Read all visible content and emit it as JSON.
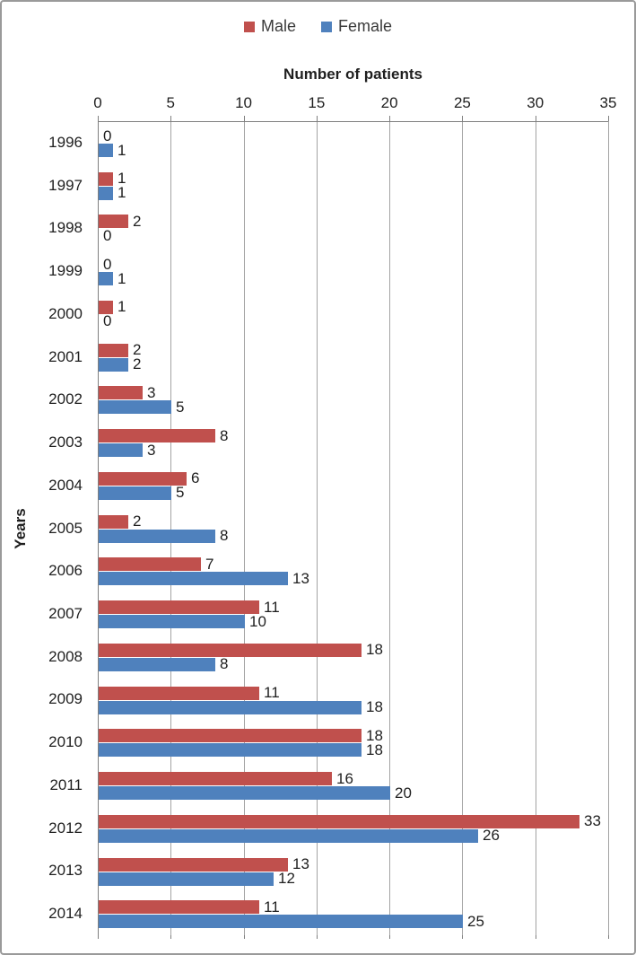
{
  "chart_data": {
    "type": "bar",
    "orientation": "horizontal",
    "xlabel": "Number of patients",
    "ylabel": "Years",
    "categories": [
      "1996",
      "1997",
      "1998",
      "1999",
      "2000",
      "2001",
      "2002",
      "2003",
      "2004",
      "2005",
      "2006",
      "2007",
      "2008",
      "2009",
      "2010",
      "2011",
      "2012",
      "2013",
      "2014"
    ],
    "series": [
      {
        "name": "Male",
        "color": "#C0504D",
        "values": [
          0,
          1,
          2,
          0,
          1,
          2,
          3,
          8,
          6,
          2,
          7,
          11,
          18,
          11,
          18,
          16,
          33,
          13,
          11
        ]
      },
      {
        "name": "Female",
        "color": "#4F81BD",
        "values": [
          1,
          1,
          0,
          1,
          0,
          2,
          5,
          3,
          5,
          8,
          13,
          10,
          8,
          18,
          18,
          20,
          26,
          12,
          25
        ]
      }
    ],
    "xlim": [
      0,
      35
    ],
    "xticks": [
      0,
      5,
      10,
      15,
      20,
      25,
      30,
      35
    ],
    "grid": true,
    "legend_position": "top",
    "data_labels": true,
    "colors": {
      "gridline": "#a3a3a3",
      "axis_line": "#7f7f7f",
      "text": "#1f1f1f"
    }
  }
}
